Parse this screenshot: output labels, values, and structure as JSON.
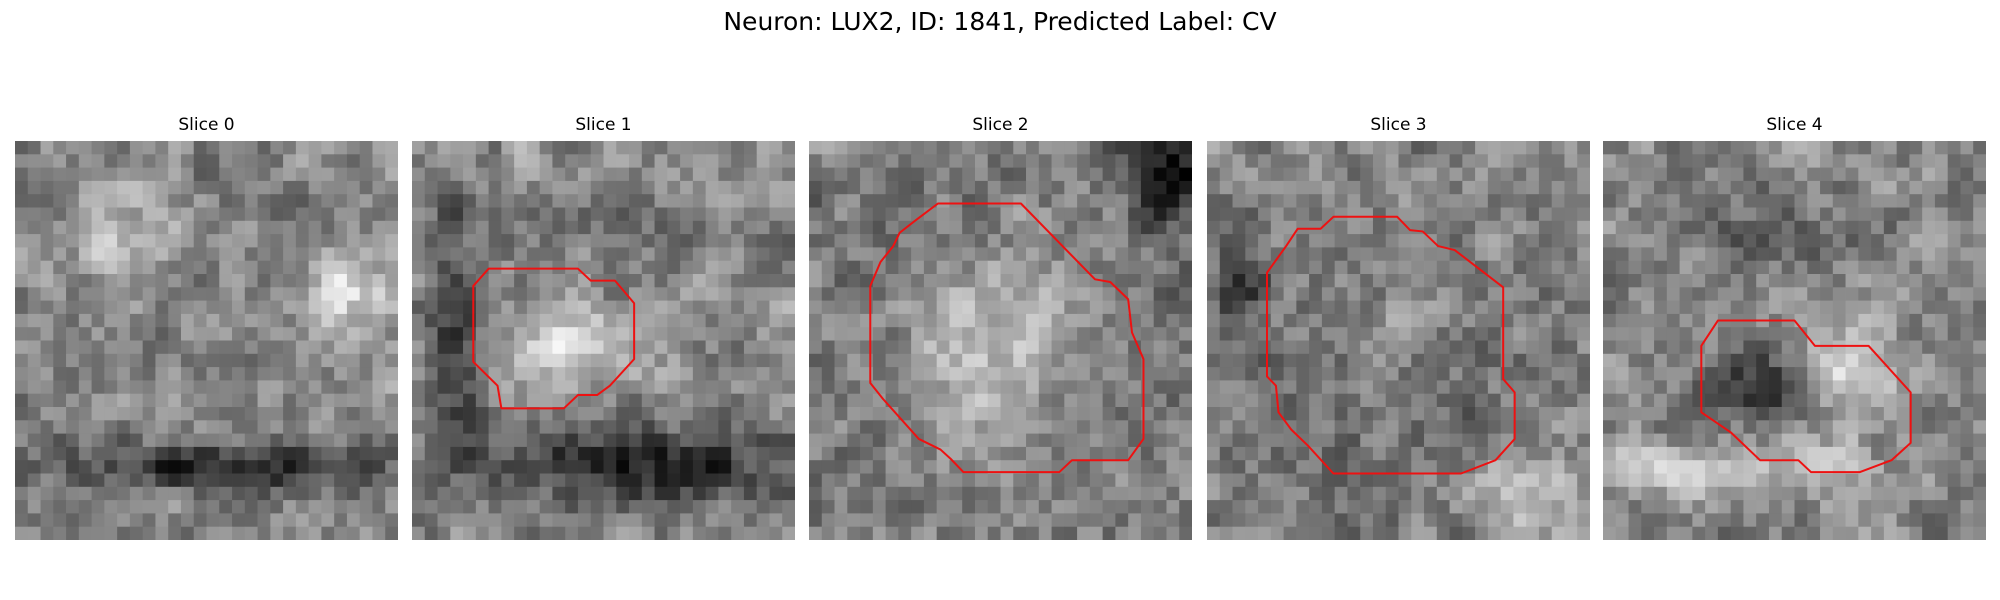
{
  "title": "Neuron: LUX2, ID: 1841, Predicted Label: CV",
  "panels": [
    {
      "title": "Slice 0"
    },
    {
      "title": "Slice 1"
    },
    {
      "title": "Slice 2"
    },
    {
      "title": "Slice 3"
    },
    {
      "title": "Slice 4"
    }
  ]
}
